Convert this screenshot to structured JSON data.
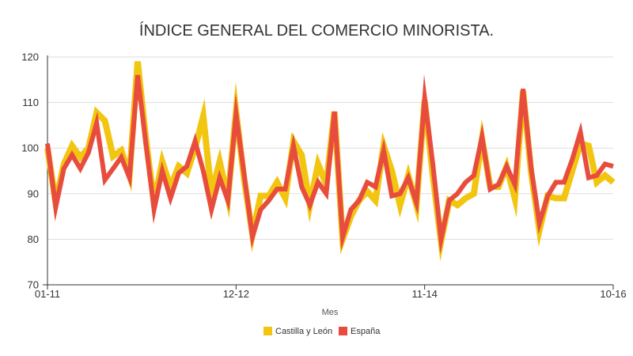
{
  "chart_data": {
    "type": "line",
    "title": "ÍNDICE GENERAL DEL COMERCIO MINORISTA.",
    "xlabel": "Mes",
    "ylabel": "",
    "ylim": [
      70,
      120
    ],
    "yticks": [
      70,
      80,
      90,
      100,
      110,
      120
    ],
    "x_start_label": "01-11",
    "x_tick_labels": [
      {
        "index": 0,
        "label": "01-11"
      },
      {
        "index": 23,
        "label": "12-12"
      },
      {
        "index": 46,
        "label": "11-14"
      },
      {
        "index": 69,
        "label": "10-16"
      }
    ],
    "grid": true,
    "legend_position": "bottom",
    "series": [
      {
        "name": "Castilla y León",
        "color": "#f2c511",
        "values": [
          100.0,
          88.0,
          96.5,
          100.5,
          98.0,
          100.0,
          107.8,
          106.0,
          98.2,
          99.5,
          94.0,
          119.0,
          102.0,
          88.0,
          97.0,
          91.5,
          96.0,
          94.5,
          100.0,
          107.0,
          90.0,
          97.0,
          89.0,
          108.0,
          93.0,
          81.0,
          89.5,
          89.5,
          92.5,
          89.0,
          101.5,
          98.5,
          87.5,
          96.5,
          92.0,
          108.0,
          80.0,
          85.0,
          88.5,
          90.5,
          88.5,
          100.5,
          95.0,
          87.5,
          94.0,
          87.5,
          110.5,
          94.0,
          79.5,
          88.5,
          87.5,
          89.0,
          90.0,
          102.0,
          91.5,
          91.5,
          96.0,
          89.0,
          112.5,
          94.5,
          82.0,
          89.5,
          89.0,
          89.0,
          95.0,
          101.0,
          100.5,
          92.5,
          94.0,
          92.5
        ]
      },
      {
        "name": "España",
        "color": "#e84c3d",
        "values": [
          101.0,
          87.0,
          95.5,
          98.5,
          95.5,
          99.0,
          105.5,
          93.0,
          95.5,
          98.0,
          93.5,
          116.0,
          101.0,
          86.5,
          95.0,
          89.0,
          94.5,
          96.0,
          101.5,
          95.0,
          86.5,
          93.5,
          88.5,
          107.5,
          94.0,
          80.5,
          86.5,
          88.5,
          91.0,
          91.0,
          100.5,
          91.5,
          87.5,
          92.5,
          90.0,
          108.0,
          80.5,
          86.5,
          88.5,
          92.5,
          91.5,
          99.5,
          89.5,
          90.0,
          93.5,
          88.0,
          111.0,
          96.5,
          80.0,
          88.5,
          90.0,
          92.5,
          94.0,
          102.5,
          91.0,
          92.0,
          96.0,
          92.0,
          113.0,
          95.5,
          83.5,
          89.5,
          92.5,
          92.5,
          97.5,
          103.5,
          93.5,
          94.0,
          96.5,
          96.0
        ]
      }
    ]
  }
}
